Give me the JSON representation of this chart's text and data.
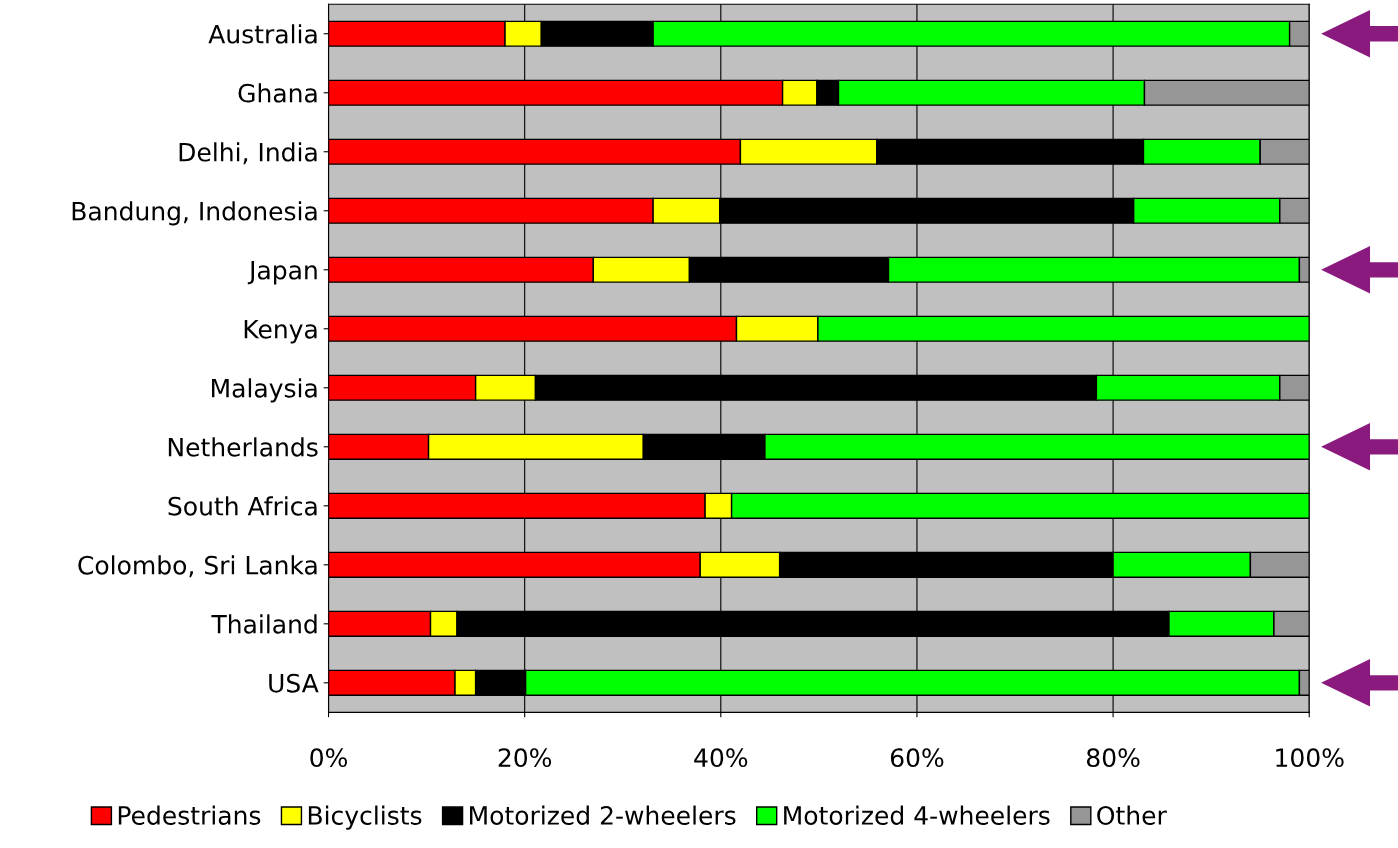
{
  "chart_data": {
    "type": "bar",
    "orientation": "horizontal",
    "stacked": true,
    "categories": [
      "Australia",
      "Ghana",
      "Delhi, India",
      "Bandung, Indonesia",
      "Japan",
      "Kenya",
      "Malaysia",
      "Netherlands",
      "South Africa",
      "Colombo, Sri Lanka",
      "Thailand",
      "USA"
    ],
    "series": [
      {
        "name": "Pedestrians",
        "color": "#ff0000",
        "values": [
          18.0,
          46.3,
          42.0,
          33.1,
          27.0,
          41.6,
          15.0,
          10.2,
          38.4,
          37.9,
          10.4,
          12.9
        ]
      },
      {
        "name": "Bicyclists",
        "color": "#ffff00",
        "values": [
          3.7,
          3.5,
          13.9,
          6.8,
          9.8,
          8.3,
          6.1,
          21.9,
          2.7,
          8.1,
          2.7,
          2.1
        ]
      },
      {
        "name": "Motorized 2-wheelers",
        "color": "#000000",
        "values": [
          11.4,
          2.2,
          27.2,
          42.2,
          20.3,
          null,
          57.2,
          12.4,
          null,
          34.0,
          72.6,
          5.1
        ]
      },
      {
        "name": "Motorized 4-wheelers",
        "color": "#00ff00",
        "values": [
          64.9,
          31.2,
          11.9,
          14.9,
          41.9,
          50.1,
          18.7,
          55.5,
          58.9,
          14.0,
          10.7,
          78.9
        ]
      },
      {
        "name": "Other",
        "color": "#969696",
        "values": [
          2.0,
          16.8,
          5.0,
          3.0,
          1.0,
          null,
          3.0,
          null,
          null,
          6.0,
          3.6,
          1.0
        ]
      }
    ],
    "xlim": [
      0,
      100
    ],
    "xticks": [
      {
        "value": 0,
        "label": "0%"
      },
      {
        "value": 20,
        "label": "20%"
      },
      {
        "value": 40,
        "label": "40%"
      },
      {
        "value": 60,
        "label": "60%"
      },
      {
        "value": 80,
        "label": "80%"
      },
      {
        "value": 100,
        "label": "100%"
      }
    ],
    "grid": "x",
    "legend": "bottom"
  }
}
